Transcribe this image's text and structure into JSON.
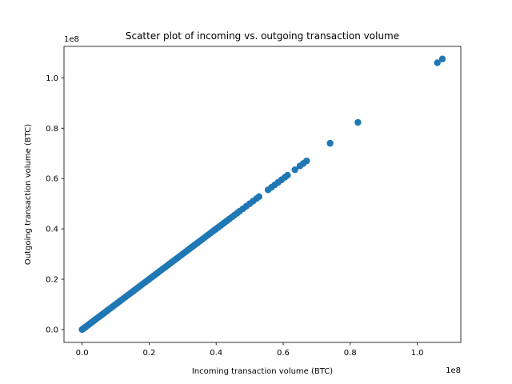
{
  "chart_data": {
    "type": "scatter",
    "title": "Scatter plot of incoming vs. outgoing transaction volume",
    "xlabel": "Incoming transaction volume (BTC)",
    "ylabel": "Outgoing transaction volume (BTC)",
    "x_offset_text": "1e8",
    "y_offset_text": "1e8",
    "xlim": [
      -5400000,
      113000000
    ],
    "ylim": [
      -5100000,
      112500000
    ],
    "xticks": [
      0,
      20000000,
      40000000,
      60000000,
      80000000,
      100000000
    ],
    "xtick_labels": [
      "0.0",
      "0.2",
      "0.4",
      "0.6",
      "0.8",
      "1.0"
    ],
    "yticks": [
      0,
      20000000,
      40000000,
      60000000,
      80000000,
      100000000
    ],
    "ytick_labels": [
      "0.0",
      "0.2",
      "0.4",
      "0.6",
      "0.8",
      "1.0"
    ],
    "grid": false,
    "legend": "none",
    "marker_color": "#1f77b4",
    "series": [
      {
        "points": [
          [
            0,
            0
          ],
          [
            150000,
            150000
          ],
          [
            300000,
            300000
          ],
          [
            450000,
            450000
          ],
          [
            600000,
            600000
          ],
          [
            750000,
            750000
          ],
          [
            900000,
            900000
          ],
          [
            1000000,
            1000000
          ],
          [
            1200000,
            1200000
          ],
          [
            1400000,
            1400000
          ],
          [
            1600000,
            1600000
          ],
          [
            1800000,
            1800000
          ],
          [
            2000000,
            2000000
          ],
          [
            2300000,
            2300000
          ],
          [
            2600000,
            2600000
          ],
          [
            2900000,
            2900000
          ],
          [
            3200000,
            3200000
          ],
          [
            3500000,
            3500000
          ],
          [
            3800000,
            3800000
          ],
          [
            4100000,
            4100000
          ],
          [
            4500000,
            4500000
          ],
          [
            4900000,
            4900000
          ],
          [
            5300000,
            5300000
          ],
          [
            5700000,
            5700000
          ],
          [
            6100000,
            6100000
          ],
          [
            6500000,
            6500000
          ],
          [
            7000000,
            7000000
          ],
          [
            7500000,
            7500000
          ],
          [
            8000000,
            8000000
          ],
          [
            8500000,
            8500000
          ],
          [
            9000000,
            9000000
          ],
          [
            9500000,
            9500000
          ],
          [
            10000000,
            10000000
          ],
          [
            10600000,
            10600000
          ],
          [
            11200000,
            11200000
          ],
          [
            11800000,
            11800000
          ],
          [
            12400000,
            12400000
          ],
          [
            13000000,
            13000000
          ],
          [
            13600000,
            13600000
          ],
          [
            14200000,
            14200000
          ],
          [
            14800000,
            14800000
          ],
          [
            15400000,
            15400000
          ],
          [
            16000000,
            16000000
          ],
          [
            16600000,
            16600000
          ],
          [
            17200000,
            17200000
          ],
          [
            17800000,
            17800000
          ],
          [
            18400000,
            18400000
          ],
          [
            19000000,
            19000000
          ],
          [
            19600000,
            19600000
          ],
          [
            20200000,
            20200000
          ],
          [
            20800000,
            20800000
          ],
          [
            21400000,
            21400000
          ],
          [
            22000000,
            22000000
          ],
          [
            22600000,
            22600000
          ],
          [
            23200000,
            23200000
          ],
          [
            23800000,
            23800000
          ],
          [
            24400000,
            24400000
          ],
          [
            25000000,
            25000000
          ],
          [
            25600000,
            25600000
          ],
          [
            26200000,
            26200000
          ],
          [
            26800000,
            26800000
          ],
          [
            27400000,
            27400000
          ],
          [
            28000000,
            28000000
          ],
          [
            28600000,
            28600000
          ],
          [
            29200000,
            29200000
          ],
          [
            29800000,
            29800000
          ],
          [
            30400000,
            30400000
          ],
          [
            31000000,
            31000000
          ],
          [
            31600000,
            31600000
          ],
          [
            32200000,
            32200000
          ],
          [
            32800000,
            32800000
          ],
          [
            33400000,
            33400000
          ],
          [
            34000000,
            34000000
          ],
          [
            34600000,
            34600000
          ],
          [
            35200000,
            35200000
          ],
          [
            35800000,
            35800000
          ],
          [
            36400000,
            36400000
          ],
          [
            37000000,
            37000000
          ],
          [
            37600000,
            37600000
          ],
          [
            38200000,
            38200000
          ],
          [
            38800000,
            38800000
          ],
          [
            39400000,
            39400000
          ],
          [
            40000000,
            40000000
          ],
          [
            40600000,
            40600000
          ],
          [
            41200000,
            41200000
          ],
          [
            41800000,
            41800000
          ],
          [
            42500000,
            42500000
          ],
          [
            43200000,
            43200000
          ],
          [
            44000000,
            44000000
          ],
          [
            44800000,
            44800000
          ],
          [
            45500000,
            45500000
          ],
          [
            46300000,
            46300000
          ],
          [
            47000000,
            47000000
          ],
          [
            48000000,
            48000000
          ],
          [
            49000000,
            49000000
          ],
          [
            50000000,
            50000000
          ],
          [
            51000000,
            51000000
          ],
          [
            52000000,
            52000000
          ],
          [
            52800000,
            52800000
          ],
          [
            55500000,
            55500000
          ],
          [
            56500000,
            56500000
          ],
          [
            57500000,
            57500000
          ],
          [
            58500000,
            58500000
          ],
          [
            59500000,
            59500000
          ],
          [
            60500000,
            60500000
          ],
          [
            61300000,
            61300000
          ],
          [
            63500000,
            63500000
          ],
          [
            65000000,
            65000000
          ],
          [
            66000000,
            66000000
          ],
          [
            67000000,
            67000000
          ],
          [
            74000000,
            74000000
          ],
          [
            82300000,
            82300000
          ],
          [
            106000000,
            106000000
          ],
          [
            107500000,
            107500000
          ]
        ]
      }
    ]
  }
}
